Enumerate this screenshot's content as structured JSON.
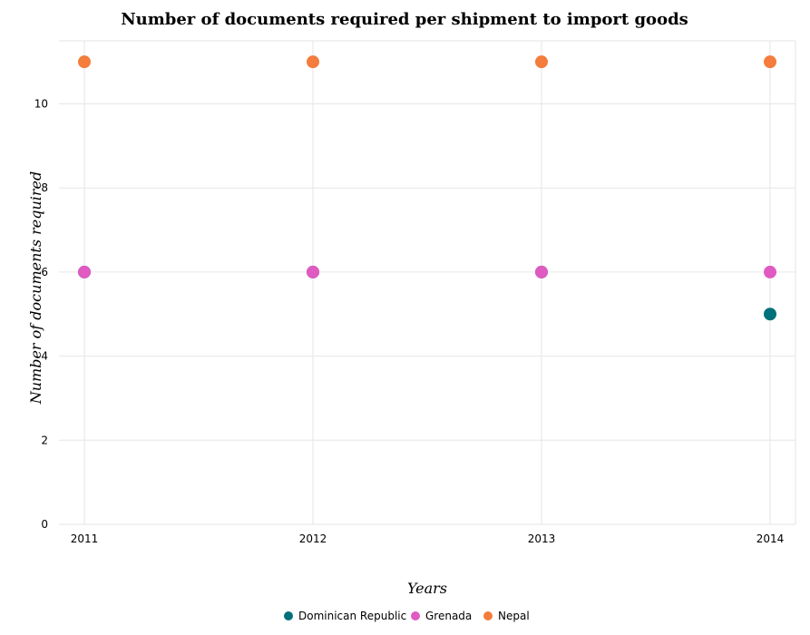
{
  "chart_data": {
    "type": "scatter",
    "title": "Number of documents required per shipment to import goods",
    "xlabel": "Years",
    "ylabel": "Number of documents required",
    "categories": [
      "2011",
      "2012",
      "2013",
      "2014"
    ],
    "ylim": [
      0,
      11.5
    ],
    "yticks": [
      0,
      2,
      4,
      6,
      8,
      10
    ],
    "ytick_labels": [
      "0",
      "2",
      "4",
      "6",
      "8",
      "10"
    ],
    "grid": true,
    "legend_position": "bottom-center",
    "series": [
      {
        "name": "Dominican Republic",
        "color": "#00707a",
        "values": [
          6,
          6,
          6,
          5
        ]
      },
      {
        "name": "Grenada",
        "color": "#e05ac2",
        "values": [
          6,
          6,
          6,
          6
        ]
      },
      {
        "name": "Nepal",
        "color": "#f47c3c",
        "values": [
          11,
          11,
          11,
          11
        ]
      }
    ]
  }
}
